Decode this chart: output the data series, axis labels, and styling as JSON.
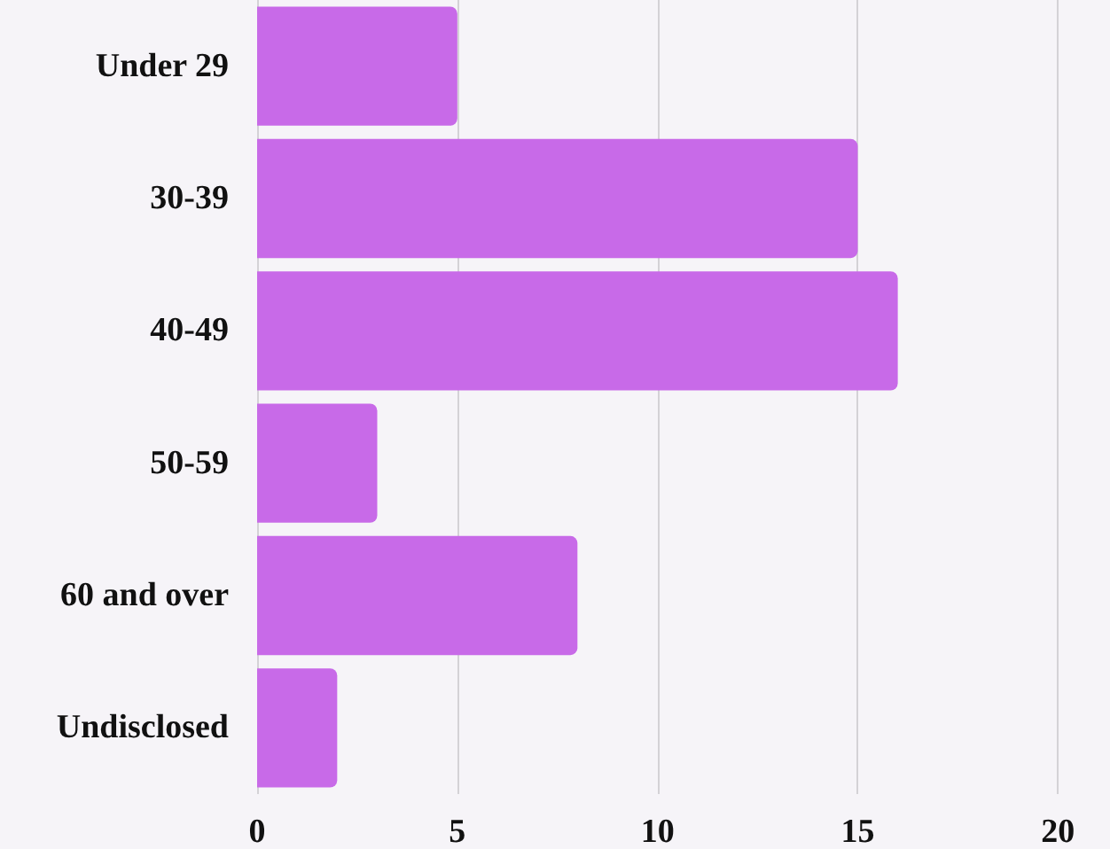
{
  "chart_data": {
    "type": "bar",
    "orientation": "horizontal",
    "categories": [
      "Under 29",
      "30-39",
      "40-49",
      "50-59",
      "60 and over",
      "Undisclosed"
    ],
    "values": [
      5,
      15,
      16,
      3,
      8,
      2
    ],
    "color": "#c86ae8",
    "xlim": [
      0,
      21.3
    ],
    "xticks": [
      0,
      5,
      10,
      15,
      20
    ],
    "grid": "x"
  }
}
